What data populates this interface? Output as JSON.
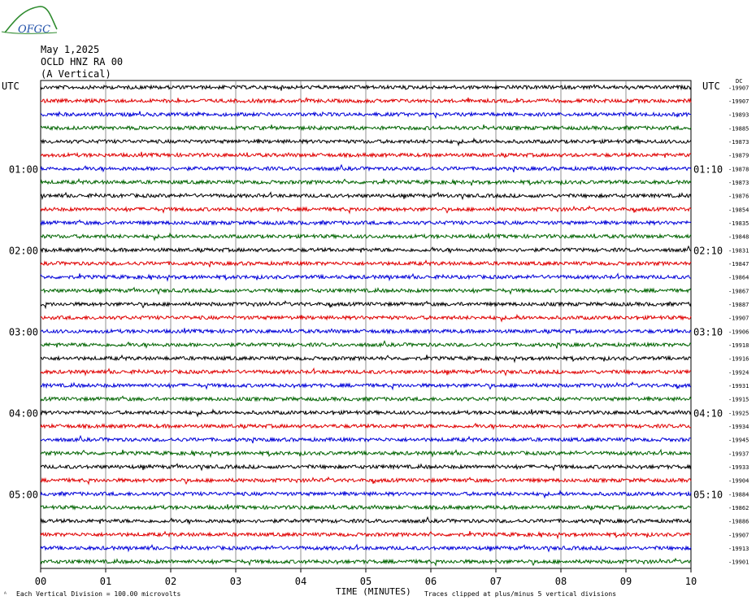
{
  "logo": {
    "text": "OFGC",
    "colors": {
      "arc": "#2e8b2e",
      "text": "#1f4fa8"
    }
  },
  "header": {
    "date": "May 1,2025",
    "station": "OCLD HNZ RA 00",
    "component": "(A Vertical)"
  },
  "axes": {
    "left_label": "UTC",
    "right_label": "UTC",
    "dc_label": "DC"
  },
  "footer": {
    "scale_note": "Each Vertical Division =  100.00 microvolts",
    "x_title": "TIME (MINUTES)",
    "clip_note": "Traces clipped at plus/minus 5 vertical divisions"
  },
  "chart_data": {
    "type": "line",
    "title": "May 1,2025 OCLD HNZ RA 00 (A Vertical)",
    "xlabel": "TIME (MINUTES)",
    "ylabel": "UTC",
    "xlim": [
      0,
      10
    ],
    "grid": true,
    "x_ticks": [
      "00",
      "01",
      "02",
      "03",
      "04",
      "05",
      "06",
      "07",
      "08",
      "09",
      "10"
    ],
    "left_hour_labels": [
      {
        "row": 6,
        "label": "01:00"
      },
      {
        "row": 12,
        "label": "02:00"
      },
      {
        "row": 18,
        "label": "03:00"
      },
      {
        "row": 24,
        "label": "04:00"
      },
      {
        "row": 30,
        "label": "05:00"
      }
    ],
    "right_hour_labels": [
      {
        "row": 6,
        "label": "01:10"
      },
      {
        "row": 12,
        "label": "02:10"
      },
      {
        "row": 18,
        "label": "03:10"
      },
      {
        "row": 24,
        "label": "04:10"
      },
      {
        "row": 30,
        "label": "05:10"
      }
    ],
    "trace_colors": [
      "#000000",
      "#e00000",
      "#0000d8",
      "#006400"
    ],
    "trace_dc_offsets": [
      -19907,
      -19907,
      -19893,
      -19885,
      -19873,
      -19879,
      -19878,
      -19873,
      -19876,
      -19854,
      -19835,
      -19848,
      -19831,
      -19847,
      -19864,
      -19867,
      -19887,
      -19907,
      -19906,
      -19918,
      -19916,
      -19924,
      -19931,
      -19915,
      -19925,
      -19934,
      -19945,
      -19937,
      -19933,
      -19904,
      -19884,
      -19862,
      -19886,
      -19907,
      -19913,
      -19901
    ],
    "scale_microvolts_per_division": 100.0,
    "clip_divisions": 5
  }
}
